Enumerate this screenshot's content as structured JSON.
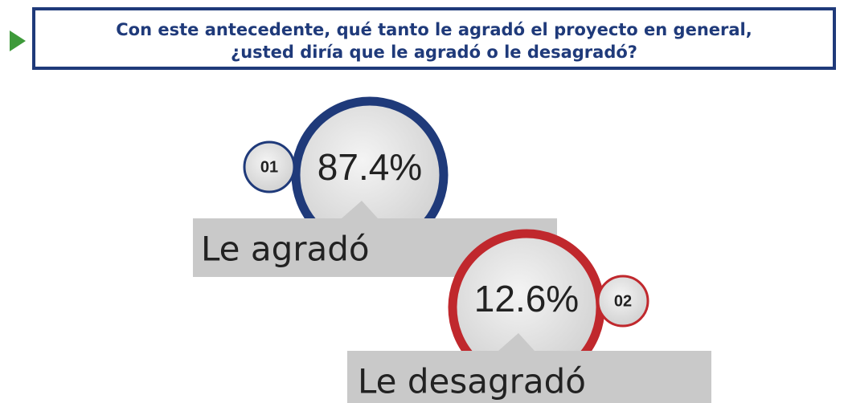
{
  "header": {
    "title_lines": [
      "Con este antecedente, qué tanto le agradó el proyecto en general,",
      "¿usted diría que le agradó o le desagradó?"
    ]
  },
  "items": [
    {
      "number": "01",
      "percent": "87.4%",
      "label": "Le agradó"
    },
    {
      "number": "02",
      "percent": "12.6%",
      "label": "Le desagradó"
    }
  ]
}
